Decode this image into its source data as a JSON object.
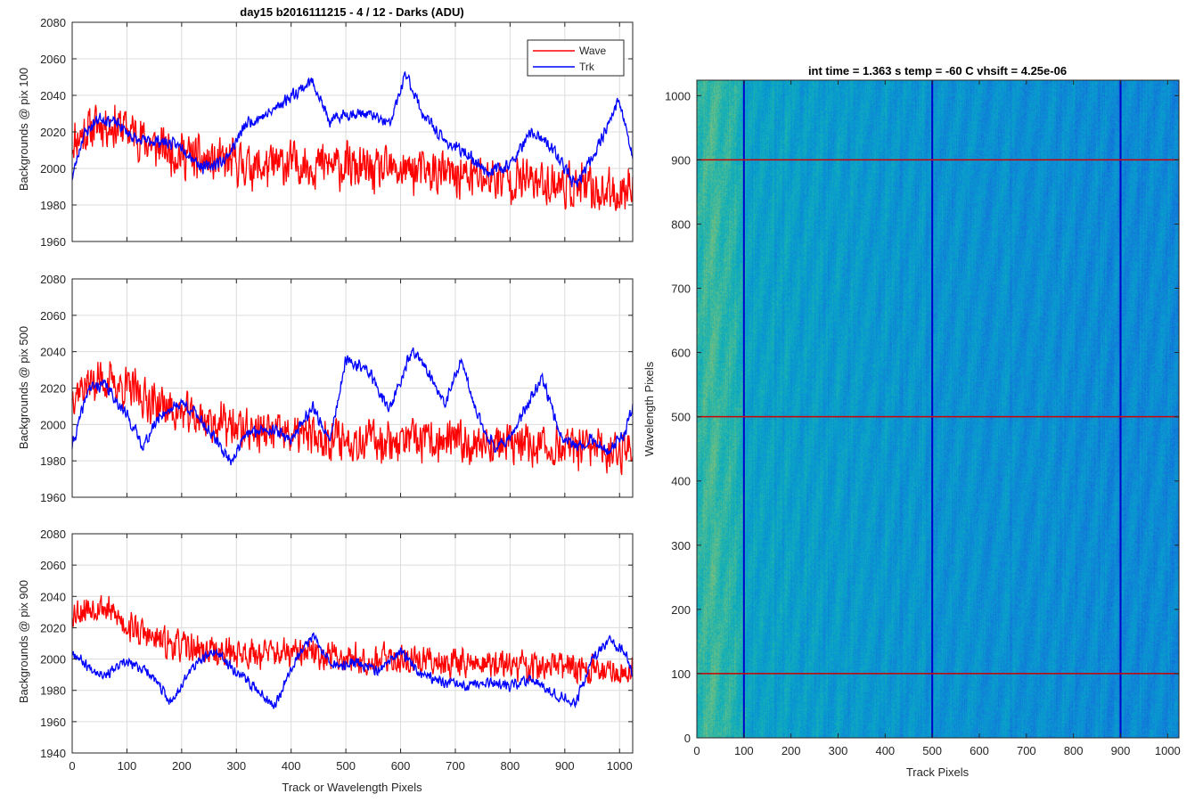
{
  "chart_data": [
    {
      "type": "line",
      "title": "day15 b2016111215 - 4 / 12 - Darks (ADU)",
      "xlabel": "",
      "ylabel": "Backgrounds @ pix 100",
      "xlim": [
        0,
        1024
      ],
      "ylim": [
        1960,
        2080
      ],
      "xticks": [
        0,
        100,
        200,
        300,
        400,
        500,
        600,
        700,
        800,
        900,
        1000
      ],
      "yticks": [
        1960,
        1980,
        2000,
        2020,
        2040,
        2060,
        2080
      ],
      "show_xtick_labels": false,
      "grid": true,
      "legend": {
        "placement": "top-right",
        "entries": [
          "Wave",
          "Trk"
        ]
      },
      "series": [
        {
          "name": "Wave",
          "color": "#ff0000",
          "x": [
            0,
            50,
            100,
            150,
            200,
            250,
            300,
            350,
            400,
            450,
            500,
            550,
            600,
            650,
            700,
            750,
            800,
            850,
            900,
            950,
            1000,
            1024
          ],
          "y": [
            2015,
            2025,
            2022,
            2012,
            2008,
            2003,
            2003,
            2000,
            2003,
            2002,
            2001,
            1998,
            1999,
            1998,
            1996,
            1995,
            1994,
            1993,
            1991,
            1988,
            1986,
            1994
          ],
          "noise": 15,
          "seed": 11
        },
        {
          "name": "Trk",
          "color": "#0000ff",
          "x": [
            0,
            20,
            50,
            80,
            120,
            160,
            200,
            240,
            280,
            320,
            360,
            400,
            440,
            470,
            500,
            540,
            580,
            610,
            640,
            680,
            720,
            760,
            800,
            840,
            880,
            920,
            960,
            1000,
            1024
          ],
          "y": [
            1995,
            2018,
            2028,
            2025,
            2015,
            2015,
            2012,
            2000,
            2005,
            2025,
            2030,
            2040,
            2048,
            2025,
            2030,
            2030,
            2024,
            2052,
            2030,
            2015,
            2008,
            1998,
            2002,
            2020,
            2010,
            1990,
            2012,
            2038,
            2005
          ],
          "noise": 4,
          "seed": 23
        }
      ]
    },
    {
      "type": "line",
      "title": "",
      "xlabel": "",
      "ylabel": "Backgrounds @ pix 500",
      "xlim": [
        0,
        1024
      ],
      "ylim": [
        1960,
        2080
      ],
      "xticks": [
        0,
        100,
        200,
        300,
        400,
        500,
        600,
        700,
        800,
        900,
        1000
      ],
      "yticks": [
        1960,
        1980,
        2000,
        2020,
        2040,
        2060,
        2080
      ],
      "show_xtick_labels": false,
      "grid": true,
      "series": [
        {
          "name": "Wave",
          "color": "#ff0000",
          "x": [
            0,
            50,
            100,
            150,
            200,
            250,
            300,
            350,
            400,
            450,
            500,
            550,
            600,
            650,
            700,
            750,
            800,
            850,
            900,
            950,
            1000,
            1024
          ],
          "y": [
            2018,
            2025,
            2020,
            2012,
            2006,
            2002,
            1998,
            1996,
            1994,
            1993,
            1992,
            1992,
            1991,
            1990,
            1990,
            1990,
            1989,
            1988,
            1987,
            1986,
            1985,
            1990
          ],
          "noise": 14,
          "seed": 37
        },
        {
          "name": "Trk",
          "color": "#0000ff",
          "x": [
            0,
            30,
            60,
            100,
            130,
            160,
            200,
            230,
            260,
            290,
            320,
            360,
            400,
            440,
            470,
            500,
            540,
            580,
            620,
            650,
            680,
            710,
            740,
            770,
            800,
            830,
            860,
            890,
            920,
            950,
            980,
            1010,
            1024
          ],
          "y": [
            1988,
            2020,
            2022,
            2005,
            1988,
            2005,
            2012,
            2005,
            1992,
            1980,
            1995,
            1998,
            1992,
            2010,
            1990,
            2035,
            2030,
            2008,
            2040,
            2030,
            2010,
            2035,
            2005,
            1988,
            1992,
            2010,
            2025,
            1995,
            1988,
            1992,
            1985,
            1995,
            2010
          ],
          "noise": 4,
          "seed": 41
        }
      ]
    },
    {
      "type": "line",
      "title": "",
      "xlabel": "Track or Wavelength Pixels",
      "ylabel": "Backgrounds @ pix 900",
      "xlim": [
        0,
        1024
      ],
      "ylim": [
        1940,
        2080
      ],
      "xticks": [
        0,
        100,
        200,
        300,
        400,
        500,
        600,
        700,
        800,
        900,
        1000
      ],
      "yticks": [
        1940,
        1960,
        1980,
        2000,
        2020,
        2040,
        2060,
        2080
      ],
      "show_xtick_labels": true,
      "grid": true,
      "series": [
        {
          "name": "Wave",
          "color": "#ff0000",
          "x": [
            0,
            50,
            100,
            150,
            200,
            250,
            300,
            350,
            400,
            450,
            500,
            550,
            600,
            650,
            700,
            750,
            800,
            850,
            900,
            950,
            1000,
            1024
          ],
          "y": [
            2030,
            2035,
            2022,
            2012,
            2008,
            2005,
            2004,
            2004,
            2003,
            2003,
            2001,
            2000,
            2000,
            1999,
            1998,
            1997,
            1996,
            1995,
            1995,
            1993,
            1992,
            1996
          ],
          "noise": 12,
          "seed": 53
        },
        {
          "name": "Trk",
          "color": "#0000ff",
          "x": [
            0,
            30,
            60,
            100,
            140,
            180,
            220,
            260,
            300,
            340,
            370,
            400,
            440,
            480,
            520,
            560,
            600,
            640,
            680,
            720,
            760,
            800,
            840,
            880,
            920,
            950,
            980,
            1010,
            1024
          ],
          "y": [
            2005,
            1995,
            1990,
            1998,
            1992,
            1972,
            1995,
            2005,
            1992,
            1980,
            1970,
            1995,
            2015,
            1995,
            1998,
            1992,
            2005,
            1990,
            1985,
            1982,
            1985,
            1982,
            1988,
            1978,
            1972,
            2000,
            2012,
            2005,
            1990
          ],
          "noise": 4,
          "seed": 67
        }
      ]
    },
    {
      "type": "heatmap",
      "title": "int time = 1.363 s   temp = -60 C   vhsift = 4.25e-06",
      "xlabel": "Track Pixels",
      "ylabel": "Wavelength Pixels",
      "xlim": [
        0,
        1024
      ],
      "ylim": [
        0,
        1024
      ],
      "xticks": [
        0,
        100,
        200,
        300,
        400,
        500,
        600,
        700,
        800,
        900,
        1000
      ],
      "yticks": [
        0,
        100,
        200,
        300,
        400,
        500,
        600,
        700,
        800,
        900,
        1000
      ],
      "colormap": "parula",
      "brightness_profile": {
        "x": [
          0,
          40,
          90,
          100,
          200,
          400,
          600,
          800,
          1024
        ],
        "v": [
          0.62,
          0.66,
          0.55,
          0.48,
          0.44,
          0.4,
          0.37,
          0.35,
          0.34
        ]
      },
      "vertical_lines": {
        "x": [
          100,
          500,
          900
        ],
        "color": "#0000cc"
      },
      "horizontal_lines": {
        "y": [
          100,
          500,
          900
        ],
        "color": "#cc0000"
      }
    }
  ]
}
